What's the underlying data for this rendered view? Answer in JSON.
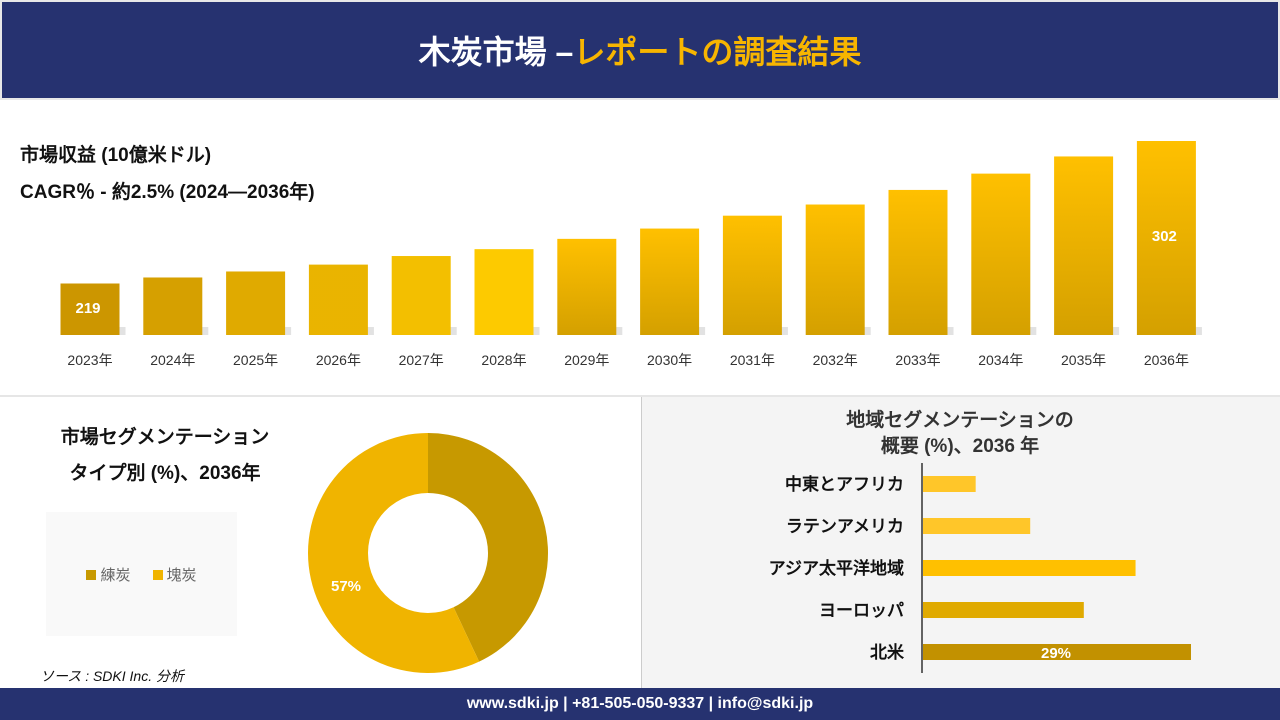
{
  "header": {
    "title_white": "木炭市場 –",
    "title_orange": "レポートの調査結果"
  },
  "revenue": {
    "title": "市場収益 (10億米ドル)",
    "cagr": "CAGR％ - 約2.5% (2024—2036年)"
  },
  "type_segment": {
    "title_line1": "市場セグメンテーション",
    "title_line2": "タイプ別 (%)、2036年"
  },
  "region_segment": {
    "title_line1": "地域セグメンテーションの",
    "title_line2": "概要 (%)、2036 年"
  },
  "source": "ソース : SDKI Inc. 分析",
  "footer": "www.sdki.jp | +81-505-050-9337 | info@sdki.jp",
  "chart_data": [
    {
      "type": "bar",
      "categories": [
        "2023年",
        "2024年",
        "2025年",
        "2026年",
        "2027年",
        "2028年",
        "2029年",
        "2030年",
        "2031年",
        "2032年",
        "2033年",
        "2034年",
        "2035年",
        "2036年"
      ],
      "values": [
        219,
        222.5,
        226,
        230,
        235,
        239,
        245,
        251,
        258.5,
        265,
        273.5,
        283,
        293,
        302
      ],
      "data_labels": {
        "0": "219",
        "13": "302"
      },
      "ylim": [
        189,
        310
      ],
      "grid": false
    },
    {
      "type": "pie",
      "donut": true,
      "labels": [
        "練炭",
        "塊炭"
      ],
      "values": [
        43,
        57
      ],
      "colors": [
        "#c79900",
        "#f0b400"
      ],
      "data_labels": {
        "1": "57%"
      },
      "legend": "left"
    },
    {
      "type": "bar",
      "orientation": "horizontal",
      "categories": [
        "中東とアフリカ",
        "ラテンアメリカ",
        "アジア太平洋地域",
        "ヨーロッパ",
        "北米"
      ],
      "values": [
        5.7,
        11.6,
        23,
        17.4,
        29
      ],
      "colors": [
        "#ffc629",
        "#ffc629",
        "#ffc000",
        "#e0aa00",
        "#c29100"
      ],
      "data_labels": {
        "4": "29%"
      },
      "grid": false
    }
  ]
}
